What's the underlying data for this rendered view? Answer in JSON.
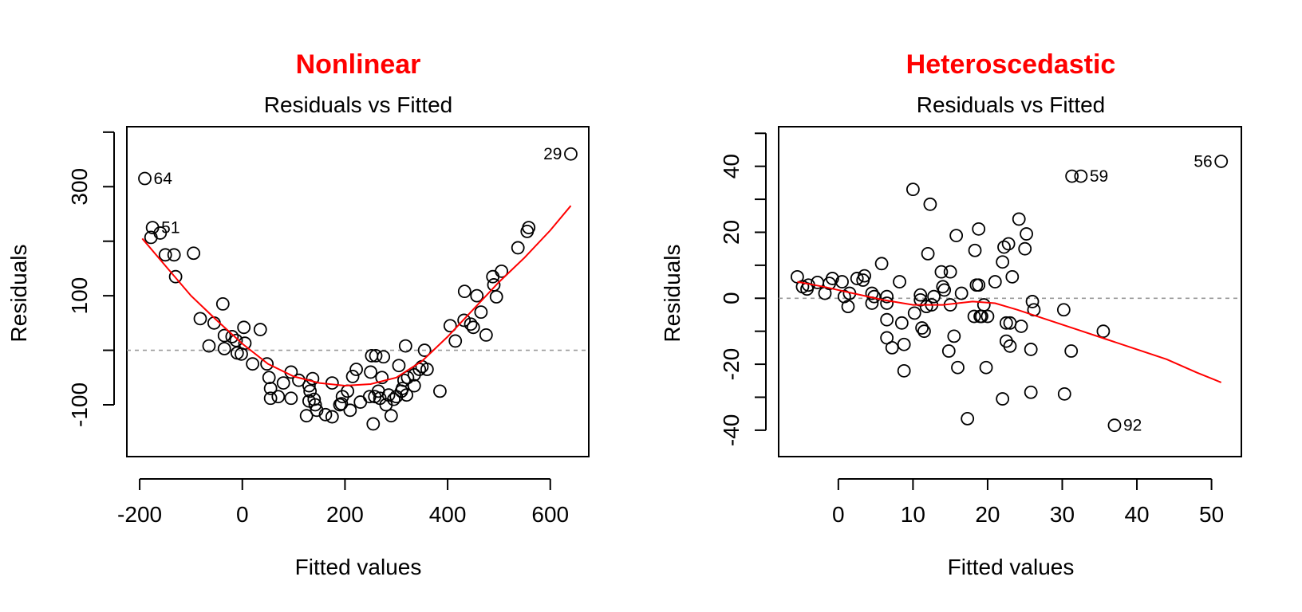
{
  "colors": {
    "title": "#ff0000",
    "smooth_line": "#ff0000",
    "points": "#000000",
    "reference_line": "#999999"
  },
  "chart_data": [
    {
      "type": "scatter",
      "title": "Nonlinear",
      "subtitle": "Residuals vs Fitted",
      "xlabel": "Fitted values",
      "ylabel": "Residuals",
      "xlim": [
        -225,
        675
      ],
      "ylim": [
        -195,
        410
      ],
      "xticks": [
        -200,
        0,
        200,
        400,
        600
      ],
      "yticks": [
        -100,
        100,
        300
      ],
      "reference_y": 0,
      "points": [
        [
          -190,
          315
        ],
        [
          -175,
          225
        ],
        [
          -178,
          207
        ],
        [
          -160,
          215
        ],
        [
          -150,
          175
        ],
        [
          -133,
          175
        ],
        [
          -130,
          135
        ],
        [
          -95,
          178
        ],
        [
          -82,
          58
        ],
        [
          -55,
          50
        ],
        [
          -65,
          8
        ],
        [
          -38,
          85
        ],
        [
          -35,
          27
        ],
        [
          -35,
          3
        ],
        [
          -20,
          25
        ],
        [
          -12,
          18
        ],
        [
          -10,
          -5
        ],
        [
          -2,
          -7
        ],
        [
          3,
          42
        ],
        [
          5,
          13
        ],
        [
          20,
          -25
        ],
        [
          35,
          38
        ],
        [
          48,
          -25
        ],
        [
          52,
          -50
        ],
        [
          55,
          -70
        ],
        [
          55,
          -88
        ],
        [
          70,
          -85
        ],
        [
          80,
          -60
        ],
        [
          95,
          -40
        ],
        [
          95,
          -88
        ],
        [
          110,
          -55
        ],
        [
          125,
          -120
        ],
        [
          130,
          -65
        ],
        [
          130,
          -93
        ],
        [
          132,
          -75
        ],
        [
          137,
          -52
        ],
        [
          140,
          -90
        ],
        [
          142,
          -100
        ],
        [
          145,
          -110
        ],
        [
          162,
          -118
        ],
        [
          175,
          -122
        ],
        [
          175,
          -60
        ],
        [
          190,
          -100
        ],
        [
          193,
          -98
        ],
        [
          195,
          -85
        ],
        [
          205,
          -75
        ],
        [
          210,
          -110
        ],
        [
          215,
          -48
        ],
        [
          222,
          -35
        ],
        [
          230,
          -95
        ],
        [
          248,
          -85
        ],
        [
          250,
          -40
        ],
        [
          252,
          -10
        ],
        [
          255,
          -135
        ],
        [
          258,
          -85
        ],
        [
          260,
          -10
        ],
        [
          265,
          -75
        ],
        [
          268,
          -88
        ],
        [
          272,
          -50
        ],
        [
          275,
          -12
        ],
        [
          280,
          -100
        ],
        [
          285,
          -82
        ],
        [
          290,
          -120
        ],
        [
          295,
          -90
        ],
        [
          300,
          -85
        ],
        [
          305,
          -28
        ],
        [
          310,
          -75
        ],
        [
          312,
          -70
        ],
        [
          315,
          -55
        ],
        [
          318,
          8
        ],
        [
          320,
          -82
        ],
        [
          322,
          -50
        ],
        [
          335,
          -45
        ],
        [
          335,
          -65
        ],
        [
          345,
          -35
        ],
        [
          350,
          -30
        ],
        [
          355,
          0
        ],
        [
          360,
          -35
        ],
        [
          385,
          -75
        ],
        [
          405,
          45
        ],
        [
          415,
          17
        ],
        [
          432,
          55
        ],
        [
          433,
          108
        ],
        [
          445,
          48
        ],
        [
          450,
          42
        ],
        [
          457,
          100
        ],
        [
          465,
          70
        ],
        [
          475,
          28
        ],
        [
          488,
          135
        ],
        [
          490,
          120
        ],
        [
          495,
          98
        ],
        [
          505,
          145
        ],
        [
          537,
          188
        ],
        [
          555,
          218
        ],
        [
          558,
          225
        ],
        [
          640,
          360
        ]
      ],
      "labeled_points": [
        {
          "label": "64",
          "x": -190,
          "y": 315,
          "side": "right"
        },
        {
          "label": "51",
          "x": -175,
          "y": 225,
          "side": "right"
        },
        {
          "label": "29",
          "x": 640,
          "y": 360,
          "side": "left"
        }
      ],
      "smooth": [
        [
          -195,
          205
        ],
        [
          -150,
          155
        ],
        [
          -100,
          100
        ],
        [
          -50,
          55
        ],
        [
          0,
          12
        ],
        [
          50,
          -25
        ],
        [
          100,
          -48
        ],
        [
          150,
          -60
        ],
        [
          200,
          -65
        ],
        [
          250,
          -62
        ],
        [
          300,
          -50
        ],
        [
          350,
          -20
        ],
        [
          400,
          25
        ],
        [
          450,
          75
        ],
        [
          500,
          125
        ],
        [
          550,
          170
        ],
        [
          600,
          220
        ],
        [
          640,
          265
        ]
      ]
    },
    {
      "type": "scatter",
      "title": "Heteroscedastic",
      "subtitle": "Residuals vs Fitted",
      "xlabel": "Fitted values",
      "ylabel": "Residuals",
      "xlim": [
        -8,
        54
      ],
      "ylim": [
        -48,
        52
      ],
      "xticks": [
        0,
        10,
        20,
        30,
        40,
        50
      ],
      "yticks": [
        -40,
        -20,
        0,
        20,
        40
      ],
      "reference_y": 0,
      "points": [
        [
          -5.5,
          6.5
        ],
        [
          -4.8,
          3.5
        ],
        [
          -4.2,
          2.8
        ],
        [
          -4,
          4
        ],
        [
          -2.8,
          4.8
        ],
        [
          -1.8,
          1.5
        ],
        [
          -1.2,
          4.5
        ],
        [
          -0.8,
          6
        ],
        [
          0.5,
          5
        ],
        [
          0.8,
          0.5
        ],
        [
          1.3,
          -2.5
        ],
        [
          1.5,
          1.5
        ],
        [
          2.5,
          6
        ],
        [
          3.3,
          5.5
        ],
        [
          3.5,
          6.8
        ],
        [
          4.5,
          -1.5
        ],
        [
          4.5,
          1.5
        ],
        [
          4.8,
          0.5
        ],
        [
          5.8,
          10.5
        ],
        [
          6.5,
          -1.5
        ],
        [
          6.5,
          0.5
        ],
        [
          6.5,
          -6.5
        ],
        [
          6.5,
          -12
        ],
        [
          7.2,
          -15
        ],
        [
          8.2,
          5
        ],
        [
          8.5,
          -7.5
        ],
        [
          8.8,
          -14
        ],
        [
          8.8,
          -22
        ],
        [
          10,
          33
        ],
        [
          10.2,
          -4.5
        ],
        [
          11,
          -0.5
        ],
        [
          11,
          1
        ],
        [
          11.2,
          -9
        ],
        [
          11.5,
          -10
        ],
        [
          11.8,
          -2.5
        ],
        [
          12,
          13.5
        ],
        [
          12.3,
          28.5
        ],
        [
          12.5,
          -2
        ],
        [
          12.8,
          0.5
        ],
        [
          13.8,
          8
        ],
        [
          14,
          3.5
        ],
        [
          14.2,
          2.5
        ],
        [
          14.8,
          -16
        ],
        [
          15,
          -2
        ],
        [
          15,
          8
        ],
        [
          15.5,
          -11.5
        ],
        [
          15.8,
          19
        ],
        [
          16,
          -21
        ],
        [
          16.5,
          1.5
        ],
        [
          17.3,
          -36.5
        ],
        [
          18.2,
          -5.5
        ],
        [
          18.3,
          14.5
        ],
        [
          18.5,
          4
        ],
        [
          18.8,
          21
        ],
        [
          18.8,
          4
        ],
        [
          19,
          -5.5
        ],
        [
          19.2,
          -5.5
        ],
        [
          19.5,
          -2
        ],
        [
          19.8,
          -21
        ],
        [
          20,
          -5.5
        ],
        [
          21,
          5
        ],
        [
          22,
          -30.5
        ],
        [
          22,
          11
        ],
        [
          22.2,
          15.5
        ],
        [
          22.5,
          -13
        ],
        [
          22.5,
          -7.5
        ],
        [
          22.8,
          16.5
        ],
        [
          23,
          -7.5
        ],
        [
          23,
          -14.5
        ],
        [
          23.3,
          6.5
        ],
        [
          24.2,
          24
        ],
        [
          24.5,
          -8.5
        ],
        [
          25,
          15
        ],
        [
          25.2,
          19.5
        ],
        [
          25.8,
          -28.5
        ],
        [
          25.8,
          -15.5
        ],
        [
          26,
          -1
        ],
        [
          26.2,
          -3.5
        ],
        [
          30.2,
          -3.5
        ],
        [
          30.3,
          -29
        ],
        [
          31.2,
          -16
        ],
        [
          31.3,
          37
        ],
        [
          32.5,
          37
        ],
        [
          35.5,
          -10
        ],
        [
          37,
          -38.5
        ],
        [
          51.3,
          41.5
        ]
      ],
      "labeled_points": [
        {
          "label": "59",
          "x": 32.5,
          "y": 37,
          "side": "right"
        },
        {
          "label": "56",
          "x": 51.3,
          "y": 41.5,
          "side": "left"
        },
        {
          "label": "92",
          "x": 37,
          "y": -38.5,
          "side": "right"
        }
      ],
      "smooth": [
        [
          -5.5,
          5
        ],
        [
          -2,
          3.5
        ],
        [
          2,
          1.5
        ],
        [
          6,
          -0.5
        ],
        [
          10,
          -2
        ],
        [
          14,
          -2
        ],
        [
          18,
          -1
        ],
        [
          21,
          -1.5
        ],
        [
          24,
          -3.5
        ],
        [
          28,
          -6.5
        ],
        [
          32,
          -9.5
        ],
        [
          36,
          -12.5
        ],
        [
          40,
          -15.5
        ],
        [
          44,
          -18.5
        ],
        [
          48,
          -22.5
        ],
        [
          51.3,
          -25.5
        ]
      ]
    }
  ]
}
